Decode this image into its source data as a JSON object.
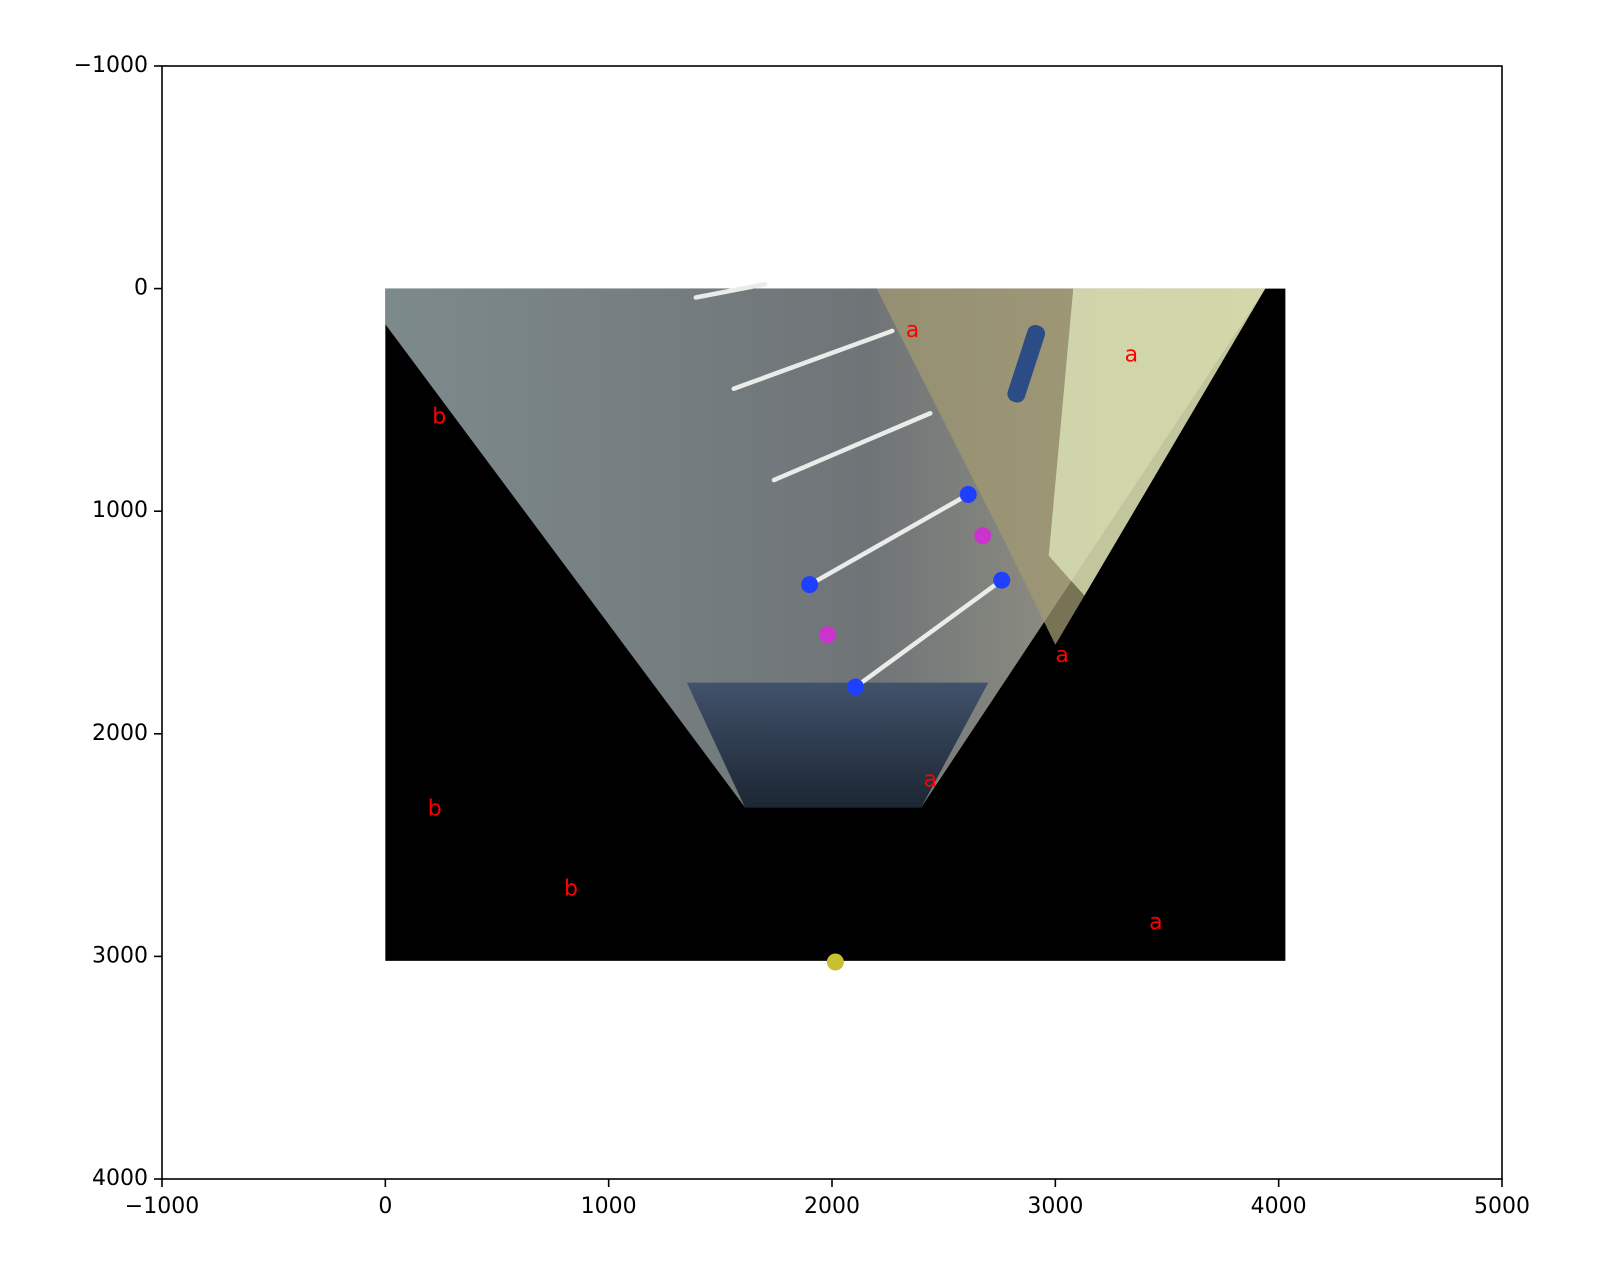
{
  "chart_data": {
    "type": "scatter",
    "title": "",
    "xlabel": "",
    "ylabel": "",
    "xlim": [
      -1000,
      5000
    ],
    "ylim": [
      -1000,
      4000
    ],
    "y_inverted": true,
    "grid": false,
    "xticks": [
      -1000,
      0,
      1000,
      2000,
      3000,
      4000,
      5000
    ],
    "yticks": [
      -1000,
      0,
      1000,
      2000,
      3000,
      4000
    ],
    "xtick_labels": [
      "−1000",
      "0",
      "1000",
      "2000",
      "3000",
      "4000",
      "5000"
    ],
    "ytick_labels": [
      "−1000",
      "0",
      "1000",
      "2000",
      "3000",
      "4000"
    ],
    "background_image": {
      "description": "perspective-warped parking lot photo on black canvas",
      "extent_x": [
        0,
        4030
      ],
      "extent_y": [
        0,
        3020
      ],
      "fill_color": "#000000",
      "photo_polygon": [
        [
          0,
          0
        ],
        [
          3940,
          0
        ],
        [
          2400,
          2330
        ],
        [
          1610,
          2330
        ],
        [
          0,
          160
        ]
      ]
    },
    "series": [
      {
        "color": "#1f3fff",
        "points": [
          [
            2610,
            925
          ],
          [
            1900,
            1330
          ],
          [
            2760,
            1310
          ],
          [
            2105,
            1790
          ]
        ]
      },
      {
        "color": "#cc33cc",
        "points": [
          [
            2675,
            1110
          ],
          [
            1980,
            1555
          ]
        ]
      },
      {
        "color": "#c8c030",
        "points": [
          [
            2015,
            3025
          ]
        ]
      }
    ],
    "annotations": [
      {
        "text": "a",
        "x": 2330,
        "y": 190,
        "color": "#ff0000"
      },
      {
        "text": "a",
        "x": 3310,
        "y": 300,
        "color": "#ff0000"
      },
      {
        "text": "b",
        "x": 210,
        "y": 580,
        "color": "#ff0000"
      },
      {
        "text": "a",
        "x": 3000,
        "y": 1650,
        "color": "#ff0000"
      },
      {
        "text": "a",
        "x": 2410,
        "y": 2210,
        "color": "#ff0000"
      },
      {
        "text": "b",
        "x": 190,
        "y": 2340,
        "color": "#ff0000"
      },
      {
        "text": "b",
        "x": 800,
        "y": 2700,
        "color": "#ff0000"
      },
      {
        "text": "a",
        "x": 3420,
        "y": 2850,
        "color": "#ff0000"
      }
    ]
  }
}
